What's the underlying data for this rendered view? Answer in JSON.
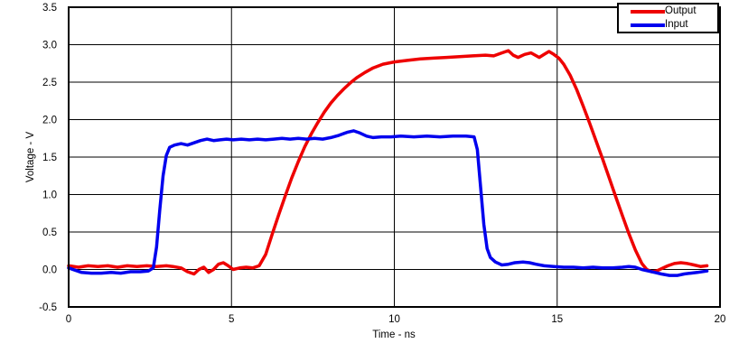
{
  "figure": {
    "background": "#ffffff",
    "text_color": "#000000"
  },
  "chart_data": {
    "type": "line",
    "title": "",
    "xlabel": "Time - ns",
    "ylabel": "Voltage - V",
    "xlim": [
      0,
      20
    ],
    "ylim": [
      -0.5,
      3.5
    ],
    "xticks": [
      0,
      5,
      10,
      15,
      20
    ],
    "xtick_labels": [
      "0",
      "5",
      "10",
      "15",
      "20"
    ],
    "yticks": [
      -0.5,
      0.0,
      0.5,
      1.0,
      1.5,
      2.0,
      2.5,
      3.0,
      3.5
    ],
    "ytick_labels": [
      "-0.5",
      "0.0",
      "0.5",
      "1.0",
      "1.5",
      "2.0",
      "2.5",
      "3.0",
      "3.5"
    ],
    "grid": true,
    "axis_color": "#000000",
    "legend_position": "top-right",
    "series": [
      {
        "name": "Output",
        "color": "#ee0000",
        "points": [
          [
            0,
            0.05
          ],
          [
            0.3,
            0.03
          ],
          [
            0.6,
            0.05
          ],
          [
            0.9,
            0.04
          ],
          [
            1.2,
            0.05
          ],
          [
            1.5,
            0.03
          ],
          [
            1.8,
            0.05
          ],
          [
            2.1,
            0.04
          ],
          [
            2.4,
            0.05
          ],
          [
            2.7,
            0.04
          ],
          [
            3.0,
            0.05
          ],
          [
            3.2,
            0.04
          ],
          [
            3.45,
            0.02
          ],
          [
            3.65,
            -0.03
          ],
          [
            3.85,
            -0.06
          ],
          [
            4.0,
            0.0
          ],
          [
            4.15,
            0.03
          ],
          [
            4.3,
            -0.04
          ],
          [
            4.45,
            0.0
          ],
          [
            4.6,
            0.07
          ],
          [
            4.75,
            0.09
          ],
          [
            4.9,
            0.05
          ],
          [
            5.05,
            0.0
          ],
          [
            5.25,
            0.02
          ],
          [
            5.45,
            0.03
          ],
          [
            5.65,
            0.02
          ],
          [
            5.85,
            0.05
          ],
          [
            6.05,
            0.2
          ],
          [
            6.25,
            0.47
          ],
          [
            6.45,
            0.73
          ],
          [
            6.65,
            0.98
          ],
          [
            6.85,
            1.22
          ],
          [
            7.05,
            1.44
          ],
          [
            7.25,
            1.64
          ],
          [
            7.45,
            1.81
          ],
          [
            7.65,
            1.96
          ],
          [
            7.85,
            2.1
          ],
          [
            8.05,
            2.22
          ],
          [
            8.25,
            2.32
          ],
          [
            8.45,
            2.41
          ],
          [
            8.65,
            2.49
          ],
          [
            8.85,
            2.56
          ],
          [
            9.1,
            2.63
          ],
          [
            9.35,
            2.69
          ],
          [
            9.65,
            2.74
          ],
          [
            10.0,
            2.77
          ],
          [
            10.4,
            2.79
          ],
          [
            10.8,
            2.81
          ],
          [
            11.2,
            2.82
          ],
          [
            11.6,
            2.83
          ],
          [
            12.0,
            2.84
          ],
          [
            12.4,
            2.85
          ],
          [
            12.8,
            2.86
          ],
          [
            13.05,
            2.85
          ],
          [
            13.3,
            2.89
          ],
          [
            13.5,
            2.92
          ],
          [
            13.65,
            2.86
          ],
          [
            13.8,
            2.83
          ],
          [
            14.0,
            2.87
          ],
          [
            14.2,
            2.89
          ],
          [
            14.45,
            2.83
          ],
          [
            14.6,
            2.87
          ],
          [
            14.75,
            2.91
          ],
          [
            14.9,
            2.87
          ],
          [
            15.05,
            2.82
          ],
          [
            15.2,
            2.74
          ],
          [
            15.4,
            2.59
          ],
          [
            15.6,
            2.4
          ],
          [
            15.8,
            2.18
          ],
          [
            16.0,
            1.95
          ],
          [
            16.2,
            1.71
          ],
          [
            16.4,
            1.47
          ],
          [
            16.6,
            1.22
          ],
          [
            16.8,
            0.97
          ],
          [
            17.0,
            0.72
          ],
          [
            17.2,
            0.48
          ],
          [
            17.4,
            0.26
          ],
          [
            17.6,
            0.08
          ],
          [
            17.75,
            0.0
          ],
          [
            17.9,
            -0.03
          ],
          [
            18.05,
            -0.02
          ],
          [
            18.2,
            0.01
          ],
          [
            18.4,
            0.05
          ],
          [
            18.6,
            0.08
          ],
          [
            18.8,
            0.09
          ],
          [
            19.0,
            0.08
          ],
          [
            19.2,
            0.06
          ],
          [
            19.4,
            0.04
          ],
          [
            19.6,
            0.05
          ]
        ]
      },
      {
        "name": "Input",
        "color": "#0000ee",
        "points": [
          [
            0,
            0.02
          ],
          [
            0.2,
            -0.01
          ],
          [
            0.4,
            -0.04
          ],
          [
            0.7,
            -0.05
          ],
          [
            1.0,
            -0.05
          ],
          [
            1.3,
            -0.04
          ],
          [
            1.6,
            -0.05
          ],
          [
            1.9,
            -0.03
          ],
          [
            2.2,
            -0.03
          ],
          [
            2.45,
            -0.02
          ],
          [
            2.6,
            0.02
          ],
          [
            2.7,
            0.3
          ],
          [
            2.8,
            0.8
          ],
          [
            2.9,
            1.25
          ],
          [
            3.0,
            1.52
          ],
          [
            3.1,
            1.63
          ],
          [
            3.25,
            1.66
          ],
          [
            3.45,
            1.68
          ],
          [
            3.65,
            1.66
          ],
          [
            3.85,
            1.69
          ],
          [
            4.05,
            1.72
          ],
          [
            4.25,
            1.74
          ],
          [
            4.45,
            1.72
          ],
          [
            4.65,
            1.73
          ],
          [
            4.85,
            1.74
          ],
          [
            5.05,
            1.73
          ],
          [
            5.3,
            1.74
          ],
          [
            5.55,
            1.73
          ],
          [
            5.8,
            1.74
          ],
          [
            6.05,
            1.73
          ],
          [
            6.3,
            1.74
          ],
          [
            6.55,
            1.75
          ],
          [
            6.8,
            1.74
          ],
          [
            7.05,
            1.75
          ],
          [
            7.3,
            1.74
          ],
          [
            7.55,
            1.75
          ],
          [
            7.8,
            1.74
          ],
          [
            8.05,
            1.76
          ],
          [
            8.3,
            1.79
          ],
          [
            8.55,
            1.83
          ],
          [
            8.75,
            1.85
          ],
          [
            8.95,
            1.82
          ],
          [
            9.15,
            1.78
          ],
          [
            9.35,
            1.76
          ],
          [
            9.6,
            1.77
          ],
          [
            9.9,
            1.77
          ],
          [
            10.2,
            1.78
          ],
          [
            10.6,
            1.77
          ],
          [
            11.0,
            1.78
          ],
          [
            11.4,
            1.77
          ],
          [
            11.8,
            1.78
          ],
          [
            12.2,
            1.78
          ],
          [
            12.45,
            1.77
          ],
          [
            12.55,
            1.6
          ],
          [
            12.65,
            1.1
          ],
          [
            12.75,
            0.6
          ],
          [
            12.85,
            0.28
          ],
          [
            12.95,
            0.16
          ],
          [
            13.1,
            0.1
          ],
          [
            13.3,
            0.06
          ],
          [
            13.5,
            0.07
          ],
          [
            13.7,
            0.09
          ],
          [
            13.95,
            0.1
          ],
          [
            14.15,
            0.09
          ],
          [
            14.35,
            0.07
          ],
          [
            14.6,
            0.05
          ],
          [
            14.9,
            0.04
          ],
          [
            15.2,
            0.03
          ],
          [
            15.5,
            0.03
          ],
          [
            15.8,
            0.02
          ],
          [
            16.1,
            0.03
          ],
          [
            16.4,
            0.02
          ],
          [
            16.7,
            0.02
          ],
          [
            17.0,
            0.03
          ],
          [
            17.2,
            0.04
          ],
          [
            17.4,
            0.03
          ],
          [
            17.6,
            0.0
          ],
          [
            17.8,
            -0.02
          ],
          [
            18.0,
            -0.04
          ],
          [
            18.2,
            -0.06
          ],
          [
            18.45,
            -0.08
          ],
          [
            18.7,
            -0.08
          ],
          [
            18.9,
            -0.06
          ],
          [
            19.1,
            -0.05
          ],
          [
            19.3,
            -0.04
          ],
          [
            19.6,
            -0.02
          ]
        ]
      }
    ]
  }
}
